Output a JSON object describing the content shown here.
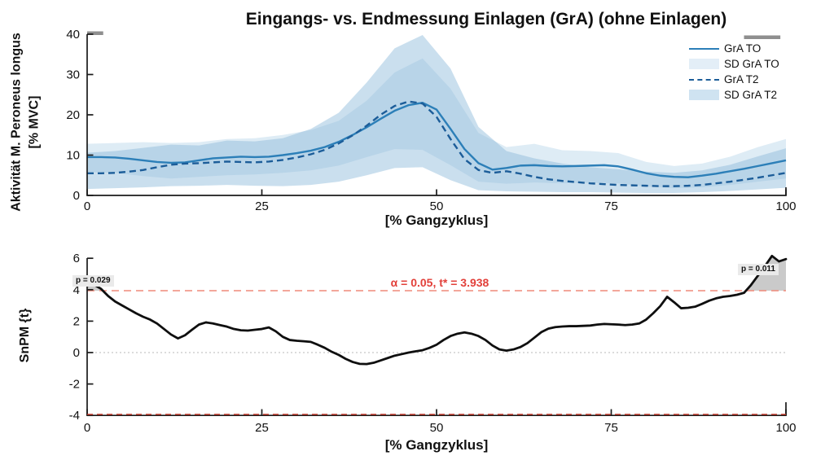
{
  "colors": {
    "line_to": "#2c7fb8",
    "line_t2": "#1c5d99",
    "band_to": "rgba(168,205,229,0.38)",
    "band_t2": "rgba(137,184,217,0.45)",
    "snpm_line": "#0f0f0f",
    "threshold_line": "#ef8a7a",
    "threshold_text": "#e2403a",
    "neg_threshold_line": "#c0392b",
    "zero_line": "#c6c6c6",
    "sig_fill": "rgba(150,150,150,0.5)",
    "sig_bar": "#8f8f8f",
    "axis": "#1a1a1a",
    "p_label_bg": "#eaeaea",
    "legend_patch_to": "#e3eef7",
    "legend_patch_t2": "#cfe3f1"
  },
  "chart_data": [
    {
      "type": "line",
      "title": "Eingangs- vs. Endmessung Einlagen (GrA) (ohne Einlagen)",
      "xlabel": "[% Gangzyklus]",
      "ylabel": "Aktivität M. Peroneus longus [% MVC]",
      "ylabel_lines": [
        "Aktivität M. Peroneus longus",
        "[% MVC]"
      ],
      "xlim": [
        0,
        100
      ],
      "ylim": [
        0,
        40
      ],
      "xticks": [
        0,
        25,
        50,
        75,
        100
      ],
      "yticks": [
        0,
        10,
        20,
        30,
        40
      ],
      "legend_position": "top-right",
      "legend": [
        {
          "label": "GrA TO",
          "swatch": "solid-line"
        },
        {
          "label": "SD GrA TO",
          "swatch": "light-patch"
        },
        {
          "label": "GrA T2",
          "swatch": "dashed-line"
        },
        {
          "label": "SD GrA T2",
          "swatch": "dark-patch"
        }
      ],
      "series": [
        {
          "name": "GrA TO",
          "style": "solid",
          "x_start": 0,
          "x_step": 2,
          "values": [
            9.5,
            9.5,
            9.4,
            9.1,
            8.7,
            8.3,
            8.1,
            8.2,
            8.7,
            9.2,
            9.4,
            9.6,
            9.5,
            9.6,
            10.0,
            10.5,
            11.1,
            12.0,
            13.3,
            15.0,
            16.9,
            19.0,
            21.0,
            22.4,
            23.0,
            21.3,
            16.5,
            11.5,
            8.0,
            6.4,
            6.8,
            7.4,
            7.5,
            7.3,
            7.2,
            7.3,
            7.4,
            7.5,
            7.2,
            6.4,
            5.5,
            4.9,
            4.6,
            4.5,
            4.9,
            5.4,
            6.0,
            6.6,
            7.3,
            8.0,
            8.7
          ]
        },
        {
          "name": "GrA T2",
          "style": "dashed",
          "x_start": 0,
          "x_step": 2,
          "values": [
            5.5,
            5.5,
            5.6,
            5.9,
            6.3,
            7.0,
            7.6,
            7.9,
            8.0,
            8.2,
            8.4,
            8.3,
            8.2,
            8.4,
            8.8,
            9.4,
            10.2,
            11.3,
            12.9,
            14.9,
            17.3,
            20.0,
            22.2,
            23.3,
            22.8,
            19.5,
            14.0,
            9.0,
            6.3,
            5.6,
            6.0,
            5.4,
            4.6,
            4.0,
            3.6,
            3.3,
            3.0,
            2.8,
            2.6,
            2.5,
            2.4,
            2.3,
            2.3,
            2.4,
            2.6,
            3.0,
            3.4,
            3.9,
            4.4,
            5.0,
            5.6
          ]
        }
      ],
      "bands": [
        {
          "name": "SD GrA TO",
          "x": [
            0,
            4,
            8,
            12,
            16,
            20,
            24,
            28,
            32,
            36,
            40,
            44,
            48,
            52,
            56,
            60,
            64,
            68,
            72,
            76,
            80,
            84,
            88,
            92,
            96,
            100
          ],
          "upper": [
            12.8,
            13.0,
            13.2,
            13.0,
            13.2,
            14.0,
            14.2,
            15.0,
            16.2,
            18.5,
            23.5,
            30.5,
            34.0,
            26.5,
            15.5,
            12.0,
            12.8,
            11.2,
            11.0,
            10.5,
            8.3,
            7.3,
            7.9,
            9.6,
            12.0,
            14.0
          ],
          "lower": [
            5.8,
            5.6,
            4.8,
            4.2,
            4.6,
            5.0,
            5.2,
            5.6,
            6.2,
            7.4,
            9.5,
            11.5,
            11.3,
            7.5,
            3.4,
            2.9,
            3.2,
            3.0,
            3.1,
            3.0,
            2.2,
            1.8,
            2.0,
            2.6,
            3.4,
            4.2
          ]
        },
        {
          "name": "SD GrA T2",
          "x": [
            0,
            4,
            8,
            12,
            16,
            20,
            24,
            28,
            32,
            36,
            40,
            44,
            48,
            52,
            56,
            60,
            64,
            68,
            72,
            76,
            80,
            84,
            88,
            92,
            96,
            100
          ],
          "upper": [
            10.6,
            11.0,
            11.8,
            12.6,
            12.4,
            13.6,
            13.4,
            14.2,
            16.5,
            20.5,
            28.0,
            36.5,
            39.8,
            31.5,
            17.0,
            11.0,
            9.2,
            7.9,
            7.0,
            6.5,
            5.9,
            5.6,
            6.2,
            7.6,
            9.7,
            11.7
          ],
          "lower": [
            1.6,
            1.8,
            2.0,
            2.3,
            2.4,
            2.6,
            2.4,
            2.3,
            2.6,
            3.4,
            5.0,
            6.8,
            7.0,
            3.8,
            1.3,
            1.0,
            0.9,
            0.8,
            0.8,
            0.7,
            0.6,
            0.6,
            0.8,
            1.1,
            1.5,
            1.9
          ]
        }
      ],
      "significance_bars": [
        [
          0,
          2.3
        ],
        [
          94,
          99.2
        ]
      ]
    },
    {
      "type": "line",
      "xlabel": "[% Gangzyklus]",
      "ylabel": "SnPM {t}",
      "xlim": [
        0,
        100
      ],
      "ylim": [
        -4,
        6
      ],
      "xticks": [
        0,
        25,
        50,
        75,
        100
      ],
      "yticks": [
        6,
        4,
        2,
        0,
        -2,
        -4
      ],
      "threshold": 3.938,
      "neg_threshold": -3.938,
      "alpha": 0.05,
      "alpha_label": "α = 0.05, t* = 3.938",
      "zero_line": true,
      "p_labels": [
        {
          "text": "p = 0.029",
          "cluster_x": [
            0,
            2.25
          ]
        },
        {
          "text": "p = 0.011",
          "cluster_x": [
            94.3,
            100
          ]
        }
      ],
      "series": [
        {
          "name": "SnPM {t}",
          "x_start": 0,
          "x_step": 1,
          "values": [
            4.25,
            4.32,
            4.05,
            3.6,
            3.25,
            3.0,
            2.75,
            2.5,
            2.28,
            2.1,
            1.85,
            1.5,
            1.15,
            0.9,
            1.1,
            1.45,
            1.78,
            1.92,
            1.85,
            1.75,
            1.65,
            1.5,
            1.42,
            1.4,
            1.45,
            1.5,
            1.6,
            1.35,
            1.0,
            0.8,
            0.75,
            0.72,
            0.68,
            0.5,
            0.3,
            0.05,
            -0.15,
            -0.4,
            -0.6,
            -0.72,
            -0.73,
            -0.65,
            -0.5,
            -0.35,
            -0.2,
            -0.1,
            0.0,
            0.08,
            0.15,
            0.3,
            0.5,
            0.8,
            1.05,
            1.2,
            1.28,
            1.2,
            1.05,
            0.8,
            0.45,
            0.2,
            0.12,
            0.2,
            0.35,
            0.6,
            0.95,
            1.3,
            1.52,
            1.62,
            1.66,
            1.68,
            1.68,
            1.7,
            1.72,
            1.78,
            1.82,
            1.8,
            1.78,
            1.75,
            1.78,
            1.85,
            2.1,
            2.5,
            2.95,
            3.55,
            3.2,
            2.82,
            2.85,
            2.92,
            3.1,
            3.3,
            3.45,
            3.55,
            3.6,
            3.68,
            3.8,
            4.3,
            4.9,
            5.5,
            6.15,
            5.8,
            5.95
          ]
        }
      ]
    }
  ]
}
